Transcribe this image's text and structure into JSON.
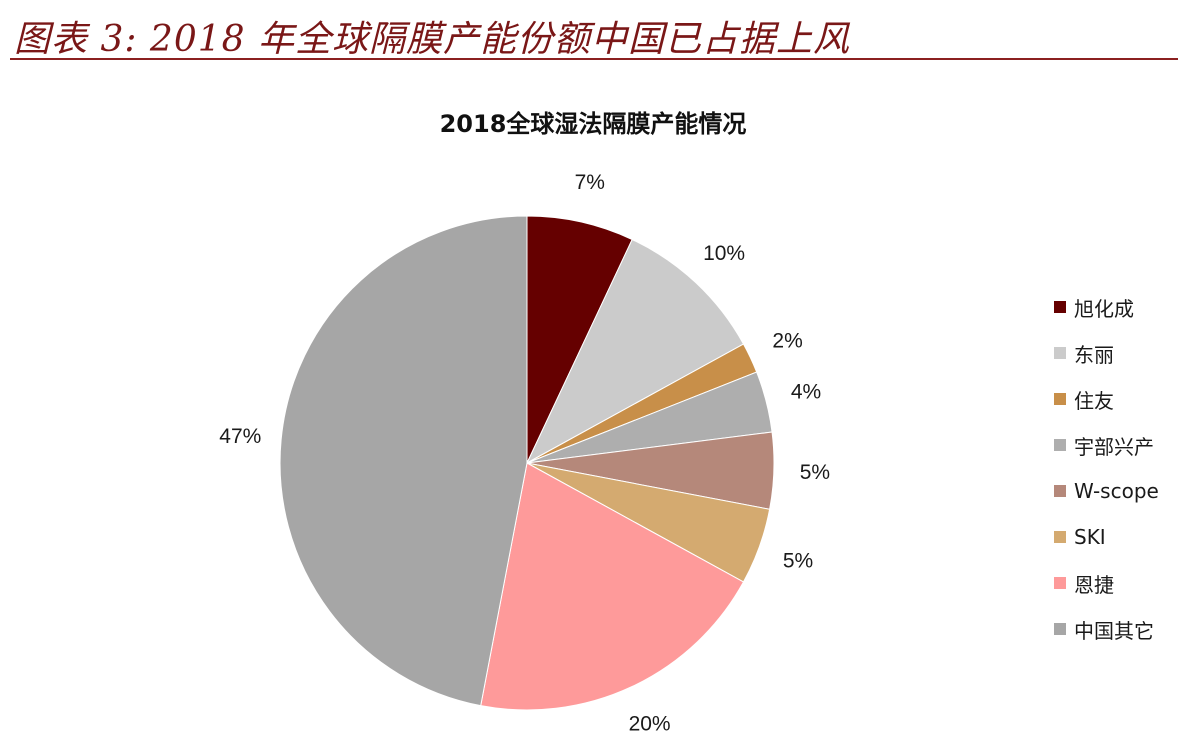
{
  "figure": {
    "caption": "图表 3: 2018 年全球隔膜产能份额中国已占据上风"
  },
  "chart_data": {
    "type": "pie",
    "title": "2018全球湿法隔膜产能情况",
    "start_angle_deg": 0,
    "direction": "clockwise",
    "legend_position": "right",
    "slices": [
      {
        "name": "旭化成",
        "value": 7,
        "label": "7%",
        "color": "#650000"
      },
      {
        "name": "东丽",
        "value": 10,
        "label": "10%",
        "color": "#cbcbcb"
      },
      {
        "name": "住友",
        "value": 2,
        "label": "2%",
        "color": "#c88f49"
      },
      {
        "name": "宇部兴产",
        "value": 4,
        "label": "4%",
        "color": "#aeaeae"
      },
      {
        "name": "W-scope",
        "value": 5,
        "label": "5%",
        "color": "#b5887a"
      },
      {
        "name": "SKI",
        "value": 5,
        "label": "5%",
        "color": "#d4aa70"
      },
      {
        "name": "恩捷",
        "value": 20,
        "label": "20%",
        "color": "#fe9a9a"
      },
      {
        "name": "中国其它",
        "value": 47,
        "label": "47%",
        "color": "#a6a6a6"
      }
    ]
  }
}
